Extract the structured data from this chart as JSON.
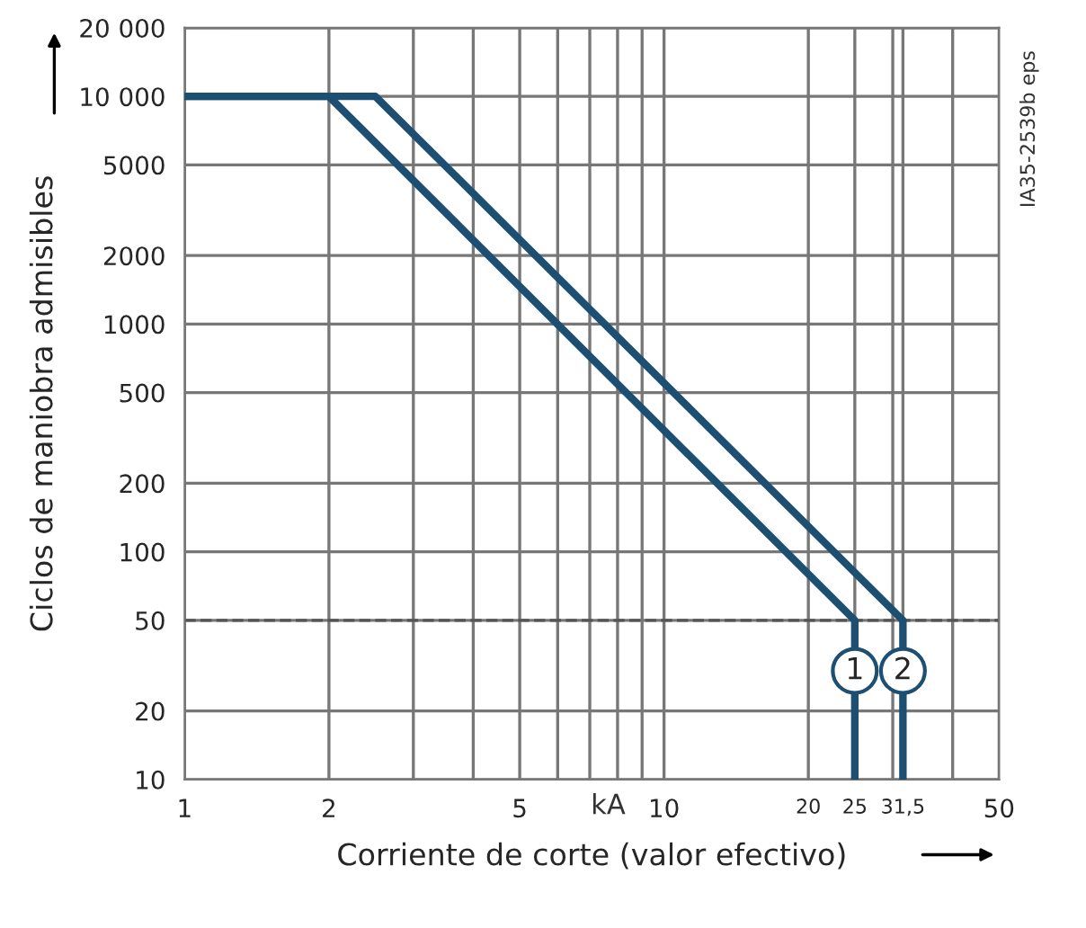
{
  "chart_data": {
    "type": "line",
    "xlabel": "Corriente de corte (valor efectivo)",
    "ylabel": "Ciclos de maniobra admisibles",
    "log": "xy",
    "xlim": [
      1,
      50
    ],
    "ylim": [
      10,
      20000
    ],
    "xticks": [
      1,
      2,
      {
        "value": 3,
        "label": null
      },
      {
        "value": 4,
        "label": null
      },
      5,
      {
        "value": 6,
        "label": null
      },
      {
        "value": 7,
        "label": null
      },
      {
        "value": 8,
        "label": null
      },
      {
        "value": 9,
        "label": null
      },
      10,
      20,
      25,
      {
        "value": 30,
        "label": null
      },
      {
        "value": 31.5,
        "label": "31,5"
      },
      {
        "value": 40,
        "label": null
      },
      50
    ],
    "yticks": [
      10,
      20,
      50,
      100,
      200,
      500,
      1000,
      2000,
      5000,
      {
        "value": 10000,
        "label": "10 000"
      },
      {
        "value": 20000,
        "label": "20 000"
      }
    ],
    "grid": true,
    "series": [
      {
        "x": [
          1,
          2,
          25,
          25
        ],
        "values": [
          10000,
          10000,
          50,
          10
        ],
        "color": "#1d4f72"
      },
      {
        "x": [
          1,
          2.5,
          31.5,
          31.5
        ],
        "values": [
          10000,
          10000,
          50,
          10
        ],
        "color": "#1d4f72"
      }
    ],
    "ref_lines": [
      {
        "axis": "y",
        "value": 50,
        "line_style": "dashed",
        "color": "#555555"
      }
    ],
    "annotations": [
      {
        "text": "1",
        "x": 25,
        "y": 30
      },
      {
        "text": "2",
        "x": 31.5,
        "y": 30
      },
      "kA",
      "IA35-2539b eps"
    ]
  }
}
